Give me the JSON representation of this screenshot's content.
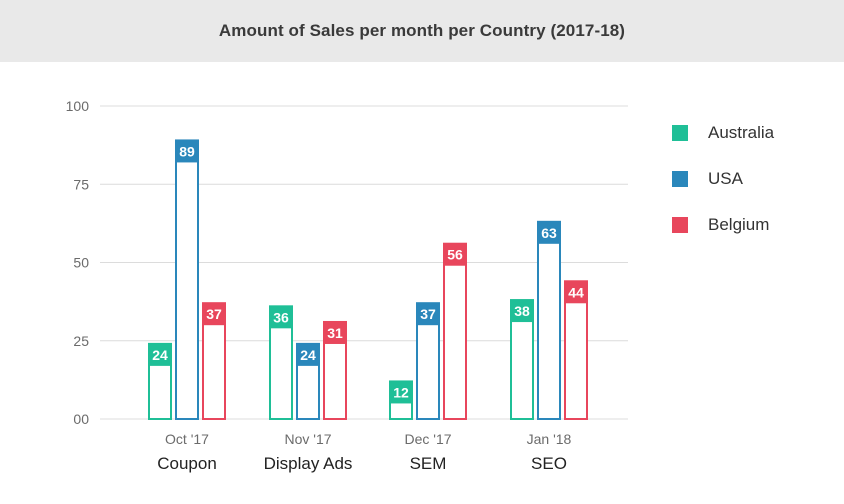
{
  "header": {
    "title": "Amount of Sales per month per Country (2017-18)"
  },
  "chart_data": {
    "type": "bar",
    "title": "Amount of Sales per month per Country (2017-18)",
    "categories": [
      "Coupon",
      "Display Ads",
      "SEM",
      "SEO"
    ],
    "months": [
      "Oct '17",
      "Nov '17",
      "Dec '17",
      "Jan '18"
    ],
    "series": [
      {
        "name": "Australia",
        "color": "#1fbf97",
        "values": [
          24,
          36,
          12,
          38
        ]
      },
      {
        "name": "USA",
        "color": "#2a87bb",
        "values": [
          89,
          24,
          37,
          63
        ]
      },
      {
        "name": "Belgium",
        "color": "#e8465c",
        "values": [
          37,
          31,
          56,
          44
        ]
      }
    ],
    "ylim": [
      0,
      100
    ],
    "yticks": [
      0,
      25,
      50,
      75,
      100
    ],
    "ytick_labels": [
      "00",
      "25",
      "50",
      "75",
      "100"
    ],
    "grid": true,
    "legend": "right",
    "xlabel": "",
    "ylabel": ""
  }
}
